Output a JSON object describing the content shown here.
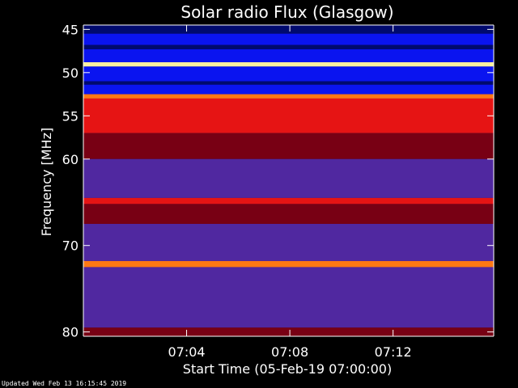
{
  "chart_data": {
    "type": "heatmap",
    "title": "Solar radio Flux (Glasgow)",
    "ylabel": "Frequency [MHz]",
    "xlabel": "Start Time (05-Feb-19 07:00:00)",
    "y_range": [
      44.5,
      80.5
    ],
    "y_ticks": [
      45,
      50,
      55,
      60,
      70,
      80
    ],
    "x_range_minutes": [
      0,
      15.9
    ],
    "x_ticks": [
      {
        "minute": 4,
        "label": "07:04"
      },
      {
        "minute": 8,
        "label": "07:08"
      },
      {
        "minute": 12,
        "label": "07:12"
      }
    ],
    "colors": {
      "blue": "#0a14f0",
      "dark_blue": "#000a6e",
      "purple": "#5028a0",
      "dark_red": "#780014",
      "red": "#e61414",
      "orange": "#ff7814",
      "yellow": "#fff0a0"
    },
    "bands": [
      {
        "from": 44.5,
        "to": 45.5,
        "color": "dark_blue"
      },
      {
        "from": 45.5,
        "to": 46.8,
        "color": "blue"
      },
      {
        "from": 46.8,
        "to": 47.3,
        "color": "dark_blue"
      },
      {
        "from": 47.3,
        "to": 48.8,
        "color": "blue"
      },
      {
        "from": 48.8,
        "to": 49.3,
        "color": "yellow"
      },
      {
        "from": 49.3,
        "to": 51.0,
        "color": "blue"
      },
      {
        "from": 51.0,
        "to": 51.4,
        "color": "dark_blue"
      },
      {
        "from": 51.4,
        "to": 52.5,
        "color": "blue"
      },
      {
        "from": 52.5,
        "to": 53.0,
        "color": "orange"
      },
      {
        "from": 53.0,
        "to": 57.0,
        "color": "red"
      },
      {
        "from": 57.0,
        "to": 60.0,
        "color": "dark_red"
      },
      {
        "from": 60.0,
        "to": 64.5,
        "color": "purple"
      },
      {
        "from": 64.5,
        "to": 65.2,
        "color": "red"
      },
      {
        "from": 65.2,
        "to": 67.5,
        "color": "dark_red"
      },
      {
        "from": 67.5,
        "to": 71.8,
        "color": "purple"
      },
      {
        "from": 71.8,
        "to": 72.5,
        "color": "orange"
      },
      {
        "from": 72.5,
        "to": 79.5,
        "color": "purple"
      },
      {
        "from": 79.5,
        "to": 80.5,
        "color": "dark_red"
      }
    ]
  },
  "footer": "Updated Wed Feb 13 16:15:45 2019"
}
